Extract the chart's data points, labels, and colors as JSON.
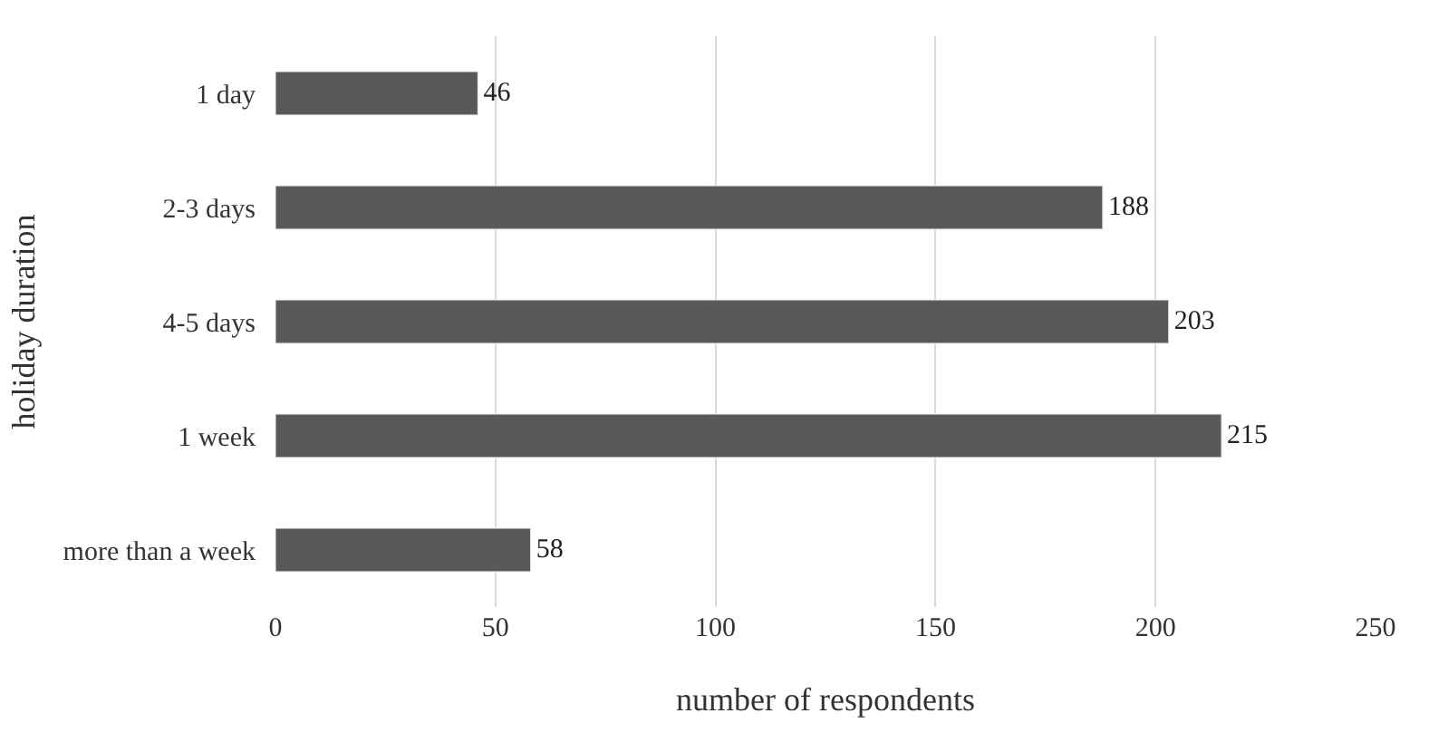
{
  "chart_data": {
    "type": "bar",
    "orientation": "horizontal",
    "xlabel": "number of respondents",
    "ylabel": "holiday duration",
    "categories": [
      "1 day",
      "2-3 days",
      "4-5 days",
      "1 week",
      "more than a week"
    ],
    "values": [
      46,
      188,
      203,
      215,
      58
    ],
    "color": "#595959",
    "xlim": [
      0,
      250
    ],
    "xticks": [
      0,
      50,
      100,
      150,
      200,
      250
    ],
    "grid": "x",
    "data_labels": true
  }
}
